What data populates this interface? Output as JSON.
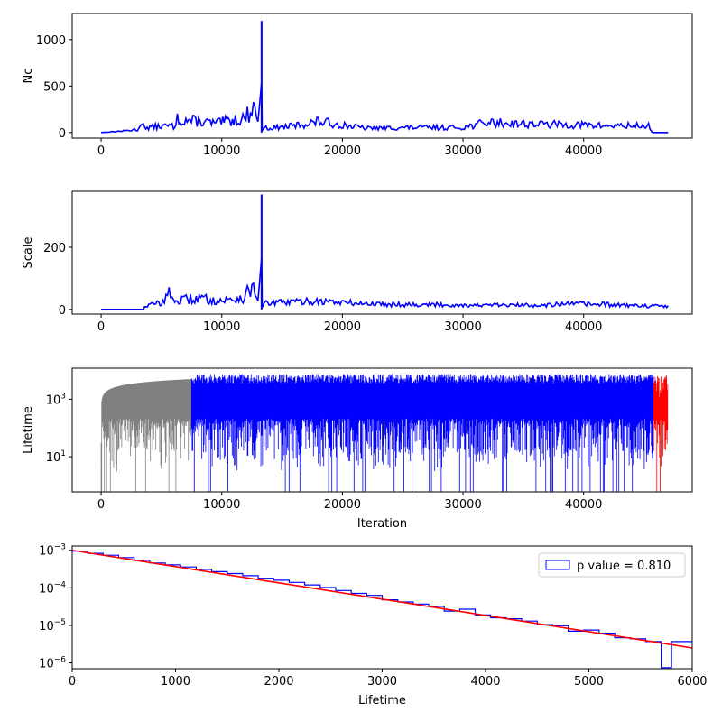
{
  "chart_data": [
    {
      "type": "line",
      "ylabel": "Nc",
      "xlim": [
        -2400,
        49000
      ],
      "ylim": [
        -60,
        1280
      ],
      "xticks": [
        0,
        10000,
        20000,
        30000,
        40000
      ],
      "xticklabels": [
        "0",
        "10000",
        "20000",
        "30000",
        "40000"
      ],
      "yticks": [
        0,
        500,
        1000
      ],
      "yticklabels": [
        "0",
        "500",
        "1000"
      ],
      "series": [
        {
          "color": "#0000ff",
          "x": [
            0,
            1000,
            2000,
            3000,
            3300,
            3500,
            3700,
            4500,
            6000,
            6200,
            7600,
            9500,
            11000,
            12000,
            12500,
            13000,
            13300,
            13350,
            13450,
            14000,
            16000,
            18000,
            22000,
            26000,
            30000,
            32000,
            36000,
            39500,
            42000,
            45500,
            45700,
            47000
          ],
          "y": [
            0,
            10,
            20,
            40,
            180,
            210,
            60,
            70,
            80,
            160,
            140,
            110,
            150,
            180,
            290,
            260,
            1200,
            60,
            60,
            50,
            80,
            130,
            50,
            60,
            60,
            120,
            100,
            90,
            80,
            80,
            0,
            0
          ]
        }
      ]
    },
    {
      "type": "line",
      "ylabel": "Scale",
      "xlim": [
        -2400,
        49000
      ],
      "ylim": [
        -15,
        380
      ],
      "xticks": [
        0,
        10000,
        20000,
        30000,
        40000
      ],
      "xticklabels": [
        "0",
        "10000",
        "20000",
        "30000",
        "40000"
      ],
      "yticks": [
        0,
        200
      ],
      "yticklabels": [
        "0",
        "200"
      ],
      "series": [
        {
          "color": "#0000ff",
          "x": [
            0,
            3500,
            3600,
            5000,
            6000,
            6200,
            8000,
            10000,
            12000,
            12500,
            13000,
            13300,
            13350,
            13450,
            15000,
            18000,
            22000,
            26000,
            30000,
            35000,
            40000,
            43000,
            45700,
            47000
          ],
          "y": [
            0,
            0,
            12,
            25,
            70,
            30,
            40,
            30,
            45,
            90,
            60,
            370,
            20,
            20,
            25,
            30,
            20,
            18,
            15,
            15,
            20,
            15,
            12,
            12
          ]
        }
      ]
    },
    {
      "type": "line",
      "ylabel": "Lifetime",
      "xlabel": "Iteration",
      "yscale": "log",
      "xlim": [
        -2400,
        49000
      ],
      "ylim": [
        0.6,
        12000
      ],
      "xticks": [
        0,
        10000,
        20000,
        30000,
        40000
      ],
      "xticklabels": [
        "0",
        "10000",
        "20000",
        "30000",
        "40000"
      ],
      "yticks": [
        10,
        1000
      ],
      "yticklabels": [
        "10^1",
        "10^3"
      ],
      "series": [
        {
          "color": "#808080",
          "x_range": [
            0,
            7500
          ],
          "envelope": "rising"
        },
        {
          "color": "#0000ff",
          "x_range": [
            7500,
            45800
          ],
          "envelope": "flat"
        },
        {
          "color": "#ff0000",
          "x_range": [
            45800,
            47000
          ],
          "envelope": "burst"
        }
      ]
    },
    {
      "type": "histogram",
      "xlabel": "Lifetime",
      "yscale": "log",
      "xlim": [
        0,
        6000
      ],
      "ylim": [
        7e-07,
        0.0013
      ],
      "xticks": [
        0,
        1000,
        2000,
        3000,
        4000,
        5000,
        6000
      ],
      "xticklabels": [
        "0",
        "1000",
        "2000",
        "3000",
        "4000",
        "5000",
        "6000"
      ],
      "yticks": [
        1e-06,
        1e-05,
        0.0001,
        0.001
      ],
      "yticklabels": [
        "10^-6",
        "10^-5",
        "10^-4",
        "10^-3"
      ],
      "legend": {
        "label": "p value = 0.810",
        "placement": "top-right"
      },
      "fit": {
        "color": "#ff0000",
        "x": [
          0,
          6000
        ],
        "y": [
          0.001,
          2.5e-06
        ]
      },
      "bins": {
        "color": "#0000ff",
        "edges": [
          0,
          150,
          300,
          450,
          600,
          750,
          900,
          1050,
          1200,
          1350,
          1500,
          1650,
          1800,
          1950,
          2100,
          2250,
          2400,
          2550,
          2700,
          2850,
          3000,
          3150,
          3300,
          3450,
          3600,
          3750,
          3900,
          4050,
          4200,
          4350,
          4500,
          4650,
          4800,
          4950,
          5100,
          5250,
          5400,
          5550,
          5700,
          5800,
          6000
        ],
        "values": [
          0.00095,
          0.00083,
          0.00074,
          0.00064,
          0.00054,
          0.00046,
          0.00041,
          0.00036,
          0.00031,
          0.00027,
          0.00024,
          0.00021,
          0.00018,
          0.00016,
          0.00014,
          0.00012,
          0.000102,
          8.5e-05,
          7.1e-05,
          6.3e-05,
          4.8e-05,
          4.2e-05,
          3.7e-05,
          3.2e-05,
          2.4e-05,
          2.7e-05,
          1.9e-05,
          1.6e-05,
          1.5e-05,
          1.3e-05,
          1.05e-05,
          9.8e-06,
          7e-06,
          7.5e-06,
          6.2e-06,
          4.7e-06,
          4.4e-06,
          3.7e-06,
          7.5e-07,
          3.7e-06
        ]
      }
    }
  ]
}
